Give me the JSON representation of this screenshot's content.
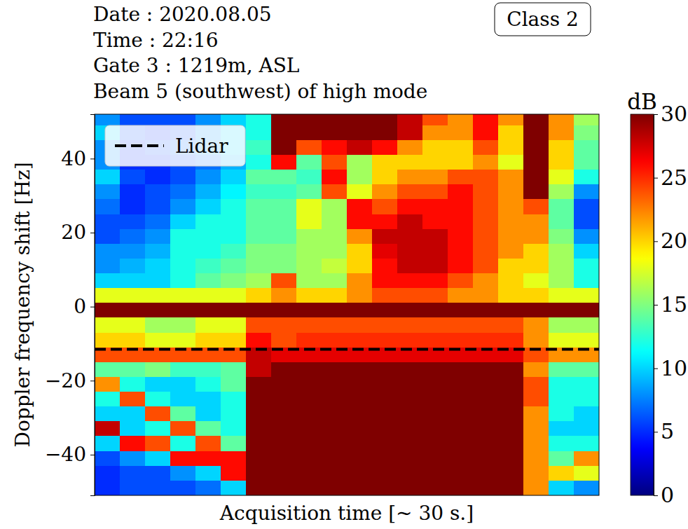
{
  "chart_data": {
    "type": "heatmap",
    "annotations": [
      "Date : 2020.08.05",
      "Time : 22:16",
      "Gate 3 : 1219m, ASL",
      "Beam 5 (southwest) of high mode"
    ],
    "badge": "Class 2",
    "x_label": "Acquisition time [~ 30 s.]",
    "y_label": "Doppler frequency shift [Hz]",
    "z_label": "dB",
    "xlim": [
      0,
      30
    ],
    "ylim": [
      -51,
      52
    ],
    "yticks": [
      {
        "value": -40,
        "label": "−40"
      },
      {
        "value": -20,
        "label": "−20"
      },
      {
        "value": 0,
        "label": "0"
      },
      {
        "value": 20,
        "label": "20"
      },
      {
        "value": 40,
        "label": "40"
      }
    ],
    "tick_labels": "y",
    "grid": false,
    "legend": "upper left",
    "zlim": [
      0,
      30
    ],
    "zticks": [
      0,
      5,
      10,
      15,
      20,
      25,
      30
    ],
    "lines": [
      {
        "name": "Lidar",
        "y": -11.5,
        "color": "#000000",
        "line_style": "dashed"
      }
    ],
    "x": [
      0.75,
      2.25,
      3.75,
      5.25,
      6.75,
      8.25,
      9.75,
      11.25,
      12.75,
      14.25,
      15.75,
      17.25,
      18.75,
      20.25,
      21.75,
      23.25,
      24.75,
      26.25,
      27.75,
      29.25
    ],
    "y": [
      51,
      47,
      43,
      39,
      35,
      31,
      27,
      23,
      19,
      15,
      11,
      7,
      3,
      -1,
      -5,
      -9,
      -13,
      -17,
      -21,
      -25,
      -29,
      -33,
      -37,
      -41,
      -45,
      -49
    ],
    "z": [
      [
        8,
        6,
        6,
        6,
        8,
        10,
        12,
        30,
        30,
        30,
        30,
        30,
        28,
        24,
        22,
        26,
        22,
        30,
        22,
        16
      ],
      [
        10,
        6,
        5,
        6,
        8,
        10,
        12,
        30,
        30,
        30,
        30,
        30,
        28,
        22,
        22,
        26,
        20,
        30,
        22,
        15
      ],
      [
        8,
        5,
        6,
        7,
        8,
        10,
        13,
        30,
        24,
        26,
        28,
        26,
        22,
        20,
        20,
        24,
        20,
        30,
        20,
        14
      ],
      [
        8,
        5,
        5,
        6,
        7,
        9,
        12,
        26,
        14,
        24,
        16,
        20,
        20,
        20,
        20,
        22,
        18,
        30,
        20,
        14
      ],
      [
        10,
        6,
        5,
        6,
        8,
        10,
        14,
        14,
        13,
        26,
        16,
        20,
        22,
        22,
        24,
        24,
        22,
        30,
        18,
        12
      ],
      [
        8,
        5,
        6,
        7,
        9,
        11,
        13,
        13,
        14,
        24,
        18,
        22,
        24,
        24,
        26,
        24,
        22,
        30,
        16,
        8
      ],
      [
        7,
        5,
        6,
        8,
        10,
        12,
        14,
        14,
        18,
        16,
        26,
        24,
        26,
        26,
        26,
        24,
        22,
        24,
        14,
        6
      ],
      [
        6,
        6,
        7,
        10,
        12,
        12,
        14,
        14,
        18,
        16,
        26,
        26,
        28,
        26,
        26,
        24,
        22,
        22,
        14,
        6
      ],
      [
        6,
        7,
        8,
        12,
        12,
        12,
        14,
        14,
        16,
        16,
        22,
        28,
        28,
        28,
        26,
        24,
        22,
        22,
        15,
        8
      ],
      [
        8,
        8,
        9,
        12,
        12,
        13,
        15,
        15,
        16,
        16,
        20,
        27,
        28,
        28,
        26,
        24,
        22,
        20,
        16,
        10
      ],
      [
        8,
        9,
        10,
        12,
        13,
        14,
        15,
        15,
        16,
        17,
        20,
        26,
        28,
        28,
        26,
        24,
        20,
        20,
        16,
        12
      ],
      [
        10,
        10,
        10,
        12,
        14,
        15,
        16,
        24,
        16,
        16,
        22,
        26,
        26,
        26,
        24,
        22,
        20,
        18,
        16,
        12
      ],
      [
        18,
        18,
        18,
        18,
        18,
        18,
        20,
        22,
        20,
        20,
        22,
        24,
        24,
        24,
        22,
        22,
        20,
        20,
        18,
        18
      ],
      [
        30,
        30,
        30,
        30,
        30,
        30,
        30,
        30,
        30,
        30,
        30,
        30,
        30,
        30,
        30,
        30,
        30,
        30,
        30,
        30
      ],
      [
        18,
        18,
        16,
        16,
        18,
        18,
        24,
        24,
        24,
        24,
        24,
        24,
        24,
        24,
        24,
        24,
        24,
        22,
        16,
        16
      ],
      [
        20,
        20,
        18,
        18,
        20,
        20,
        26,
        24,
        25,
        25,
        25,
        25,
        25,
        25,
        25,
        25,
        25,
        22,
        18,
        18
      ],
      [
        24,
        24,
        24,
        24,
        24,
        24,
        28,
        27,
        27,
        27,
        27,
        27,
        27,
        27,
        27,
        27,
        27,
        24,
        22,
        22
      ],
      [
        14,
        14,
        15,
        13,
        13,
        14,
        28,
        30,
        30,
        30,
        30,
        30,
        30,
        30,
        30,
        30,
        30,
        22,
        14,
        14
      ],
      [
        22,
        12,
        10,
        10,
        12,
        14,
        30,
        30,
        30,
        30,
        30,
        30,
        30,
        30,
        30,
        30,
        30,
        24,
        12,
        12
      ],
      [
        12,
        24,
        12,
        10,
        10,
        12,
        30,
        30,
        30,
        30,
        30,
        30,
        30,
        30,
        30,
        30,
        30,
        24,
        12,
        12
      ],
      [
        10,
        10,
        24,
        14,
        10,
        12,
        30,
        30,
        30,
        30,
        30,
        30,
        30,
        30,
        30,
        30,
        30,
        22,
        12,
        10
      ],
      [
        28,
        10,
        12,
        24,
        14,
        12,
        30,
        30,
        30,
        30,
        30,
        30,
        30,
        30,
        30,
        30,
        30,
        22,
        10,
        10
      ],
      [
        10,
        26,
        24,
        12,
        24,
        14,
        30,
        30,
        30,
        30,
        30,
        30,
        30,
        30,
        30,
        30,
        30,
        22,
        12,
        12
      ],
      [
        6,
        8,
        10,
        26,
        26,
        26,
        30,
        30,
        30,
        30,
        30,
        30,
        30,
        30,
        30,
        30,
        30,
        22,
        14,
        22
      ],
      [
        5,
        6,
        6,
        8,
        10,
        26,
        30,
        30,
        30,
        30,
        30,
        30,
        30,
        30,
        30,
        30,
        30,
        22,
        20,
        18
      ],
      [
        5,
        6,
        6,
        6,
        7,
        10,
        30,
        30,
        30,
        30,
        30,
        30,
        30,
        30,
        30,
        30,
        30,
        22,
        10,
        8
      ]
    ]
  }
}
